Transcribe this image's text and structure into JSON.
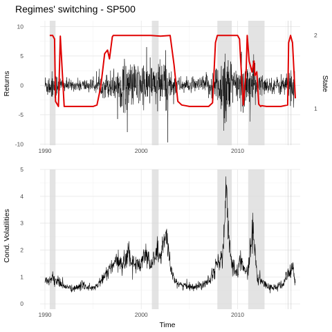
{
  "chart_data": [
    {
      "type": "line",
      "title": "Regimes' switching - SP500",
      "ylabel": "Returns",
      "ylabel_right": "State",
      "xlim": [
        1989.5,
        2016.5
      ],
      "ylim": [
        -10.2,
        11
      ],
      "y2lim": [
        0.5,
        2.2
      ],
      "x_ticks": [
        "1990",
        "2000",
        "2010"
      ],
      "y_ticks": [
        "-10",
        "-5",
        "0",
        "5",
        "10"
      ],
      "y2_ticks": [
        "1",
        "2"
      ],
      "grid": true,
      "shaded_periods": [
        [
          1990.5,
          1991.1
        ],
        [
          2001.1,
          2001.8
        ],
        [
          2007.9,
          2009.4
        ],
        [
          2011.1,
          2012.8
        ]
      ],
      "series": [
        {
          "color": "#000000",
          "x": [
            1990.0,
            1990.6,
            1990.8,
            1991.0,
            1992.0,
            1993.0,
            1994.0,
            1995.0,
            1996.0,
            1997.0,
            1997.8,
            1998.6,
            1999.0,
            2000.0,
            2000.3,
            2001.0,
            2001.7,
            2002.0,
            2002.5,
            2003.0,
            2004.0,
            2005.0,
            2006.0,
            2007.0,
            2007.6,
            2008.0,
            2008.4,
            2008.8,
            2009.0,
            2009.3,
            2009.6,
            2010.0,
            2010.4,
            2011.0,
            2011.6,
            2012.0,
            2013.0,
            2014.0,
            2015.0,
            2015.7,
            2016.0
          ],
          "spread": [
            1.7,
            2.0,
            2.2,
            2.0,
            1.0,
            0.8,
            1.1,
            0.9,
            1.6,
            2.4,
            3.4,
            4.4,
            3.2,
            3.6,
            3.8,
            3.3,
            4.2,
            3.7,
            4.6,
            2.5,
            1.2,
            1.0,
            1.1,
            1.9,
            2.8,
            3.5,
            5.2,
            9.0,
            6.0,
            4.0,
            3.0,
            2.6,
            3.4,
            3.4,
            4.5,
            2.3,
            1.2,
            1.2,
            2.0,
            3.0,
            2.6
          ]
        },
        {
          "name": "State",
          "color": "#e00000",
          "axis": "right",
          "x": [
            1990.5,
            1990.8,
            1991.0,
            1991.1,
            1991.4,
            1991.6,
            1992.0,
            1995.0,
            1995.4,
            1995.8,
            1996.2,
            1996.5,
            1996.7,
            1997.0,
            1997.1,
            1998.0,
            1999.0,
            2001.0,
            2002.0,
            2003.0,
            2003.4,
            2003.8,
            2004.2,
            2004.6,
            2005.0,
            2007.0,
            2007.4,
            2007.7,
            2007.9,
            2008.0,
            2009.0,
            2010.0,
            2010.2,
            2010.3,
            2010.6,
            2010.9,
            2011.0,
            2011.2,
            2011.4,
            2011.5,
            2011.7,
            2011.8,
            2012.0,
            2012.2,
            2012.4,
            2012.5,
            2013.0,
            2014.0,
            2014.5,
            2015.2,
            2015.3,
            2015.5,
            2015.7,
            2016.0
          ],
          "y": [
            2.0,
            2.0,
            1.95,
            1.1,
            1.03,
            1.99,
            1.03,
            1.03,
            1.05,
            1.3,
            1.75,
            1.8,
            1.68,
            1.98,
            2.0,
            2.0,
            2.0,
            2.0,
            1.99,
            2.0,
            1.6,
            1.1,
            1.05,
            1.04,
            1.03,
            1.03,
            1.08,
            1.9,
            2.0,
            2.0,
            2.0,
            2.0,
            1.95,
            1.7,
            1.05,
            1.55,
            2.0,
            1.65,
            1.55,
            1.5,
            1.65,
            1.45,
            1.5,
            1.06,
            1.03,
            1.04,
            1.03,
            1.03,
            1.03,
            1.05,
            1.9,
            2.0,
            1.9,
            1.14
          ]
        }
      ]
    },
    {
      "type": "line",
      "xlabel": "Time",
      "ylabel": "Cond. Volatilities",
      "xlim": [
        1989.5,
        2016.5
      ],
      "ylim": [
        -0.2,
        5.0
      ],
      "x_ticks": [
        "1990",
        "2000",
        "2010"
      ],
      "y_ticks": [
        "0",
        "1",
        "2",
        "3",
        "4",
        "5"
      ],
      "grid": true,
      "shaded_periods": [
        [
          1990.5,
          1991.1
        ],
        [
          2001.1,
          2001.8
        ],
        [
          2007.9,
          2009.4
        ],
        [
          2011.1,
          2012.8
        ]
      ],
      "series": [
        {
          "color": "#000000",
          "x": [
            1990.0,
            1990.5,
            1990.8,
            1991.0,
            1991.5,
            1992.0,
            1993.0,
            1994.0,
            1995.0,
            1996.0,
            1996.5,
            1997.0,
            1997.8,
            1998.0,
            1998.5,
            1998.7,
            1999.0,
            1999.5,
            2000.0,
            2000.3,
            2000.8,
            2001.0,
            2001.7,
            2002.0,
            2002.5,
            2002.7,
            2003.0,
            2003.3,
            2004.0,
            2005.0,
            2006.0,
            2007.0,
            2007.2,
            2007.6,
            2008.0,
            2008.5,
            2008.8,
            2009.0,
            2009.3,
            2009.6,
            2010.0,
            2010.4,
            2010.6,
            2011.0,
            2011.6,
            2011.8,
            2012.0,
            2013.0,
            2014.0,
            2014.8,
            2015.0,
            2015.5,
            2015.7,
            2016.0
          ],
          "y": [
            0.9,
            0.85,
            1.0,
            0.9,
            0.8,
            0.65,
            0.55,
            0.7,
            0.55,
            0.9,
            1.2,
            1.4,
            1.6,
            1.35,
            1.8,
            2.0,
            1.5,
            1.45,
            1.5,
            2.0,
            1.6,
            1.4,
            2.0,
            1.7,
            2.6,
            2.2,
            1.3,
            1.0,
            0.7,
            0.65,
            0.65,
            0.9,
            1.0,
            1.3,
            1.5,
            1.9,
            4.2,
            2.8,
            1.8,
            1.3,
            1.25,
            1.8,
            1.3,
            1.1,
            2.8,
            2.0,
            1.0,
            0.65,
            0.6,
            0.75,
            1.0,
            1.2,
            1.4,
            0.75
          ]
        }
      ]
    }
  ]
}
